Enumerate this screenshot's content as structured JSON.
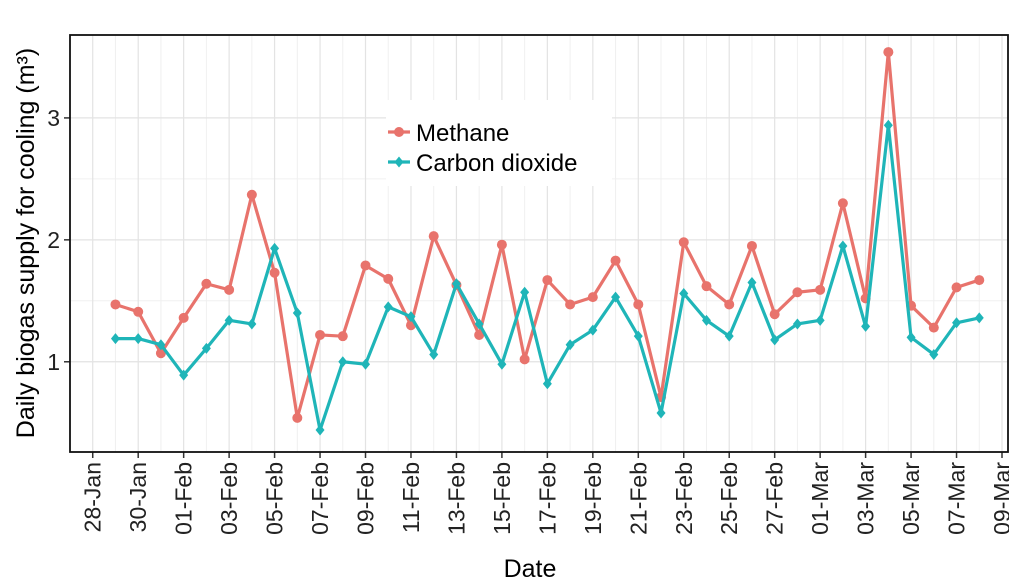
{
  "chart_data": {
    "type": "line",
    "x_label": "Date",
    "y_label": "Daily biogas supply for cooling (m³)",
    "x": [
      "29-Jan",
      "30-Jan",
      "31-Jan",
      "01-Feb",
      "02-Feb",
      "03-Feb",
      "04-Feb",
      "05-Feb",
      "06-Feb",
      "07-Feb",
      "08-Feb",
      "09-Feb",
      "10-Feb",
      "11-Feb",
      "12-Feb",
      "13-Feb",
      "14-Feb",
      "15-Feb",
      "16-Feb",
      "17-Feb",
      "18-Feb",
      "19-Feb",
      "20-Feb",
      "21-Feb",
      "22-Feb",
      "23-Feb",
      "24-Feb",
      "25-Feb",
      "26-Feb",
      "27-Feb",
      "28-Feb",
      "01-Mar",
      "02-Mar",
      "03-Mar",
      "04-Mar",
      "05-Mar",
      "06-Mar",
      "07-Mar",
      "08-Mar"
    ],
    "series": [
      {
        "name": "Methane",
        "color": "#e8736c",
        "marker": "circle",
        "values": [
          1.47,
          1.41,
          1.07,
          1.36,
          1.64,
          1.59,
          2.37,
          1.73,
          0.54,
          1.22,
          1.21,
          1.79,
          1.68,
          1.3,
          2.03,
          1.63,
          1.22,
          1.96,
          1.02,
          1.67,
          1.47,
          1.53,
          1.83,
          1.47,
          0.71,
          1.98,
          1.62,
          1.47,
          1.95,
          1.39,
          1.57,
          1.59,
          2.3,
          1.52,
          3.54,
          1.46,
          1.28,
          1.61,
          1.67
        ]
      },
      {
        "name": "Carbon dioxide",
        "color": "#1fb5b8",
        "marker": "diamond",
        "values": [
          1.19,
          1.19,
          1.14,
          0.89,
          1.11,
          1.34,
          1.31,
          1.93,
          1.4,
          0.44,
          1.0,
          0.98,
          1.45,
          1.37,
          1.06,
          1.64,
          1.31,
          0.98,
          1.57,
          0.82,
          1.14,
          1.26,
          1.53,
          1.21,
          0.58,
          1.56,
          1.34,
          1.21,
          1.65,
          1.18,
          1.31,
          1.34,
          1.95,
          1.29,
          2.94,
          1.2,
          1.06,
          1.32,
          1.36
        ]
      }
    ],
    "xlim": [
      "27-Jan",
      "09-Mar"
    ],
    "xticks": [
      "28-Jan",
      "30-Jan",
      "01-Feb",
      "03-Feb",
      "05-Feb",
      "07-Feb",
      "09-Feb",
      "11-Feb",
      "13-Feb",
      "15-Feb",
      "17-Feb",
      "19-Feb",
      "21-Feb",
      "23-Feb",
      "25-Feb",
      "27-Feb",
      "01-Mar",
      "03-Mar",
      "05-Mar",
      "07-Mar",
      "09-Mar"
    ],
    "ylim": [
      0.26,
      3.68
    ],
    "yticks": [
      1,
      2,
      3
    ],
    "grid": true,
    "legend": "top-center"
  }
}
